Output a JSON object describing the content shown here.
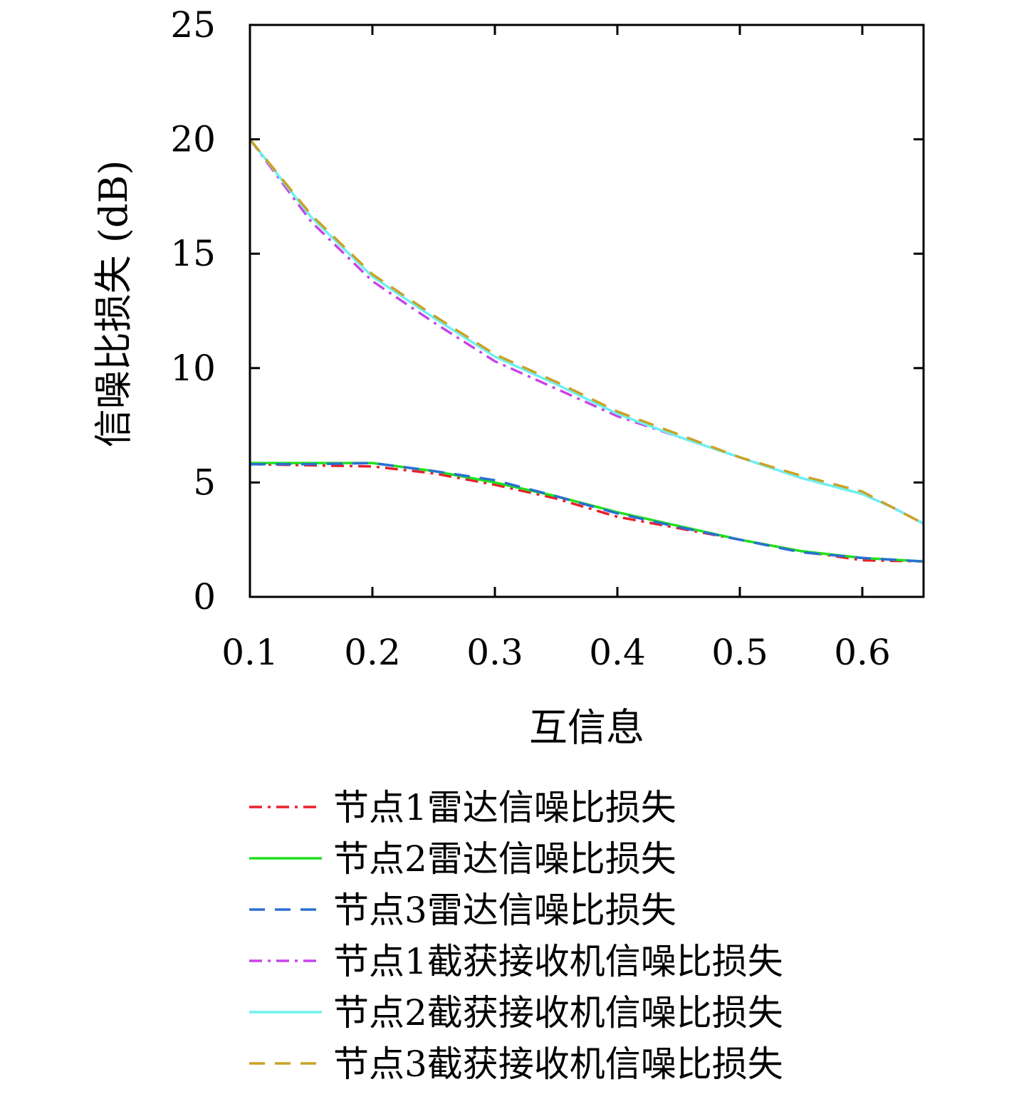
{
  "chart_data": {
    "type": "line",
    "xlabel": "互信息",
    "ylabel": "信噪比损失 (dB)",
    "xlim": [
      0.1,
      0.65
    ],
    "ylim": [
      0,
      25
    ],
    "x_ticks": [
      "0.1",
      "0.2",
      "0.3",
      "0.4",
      "0.5",
      "0.6"
    ],
    "y_ticks": [
      "0",
      "5",
      "10",
      "15",
      "20",
      "25"
    ],
    "grid": false,
    "legend_position": "bottom",
    "series": [
      {
        "name": "节点1雷达信噪比损失",
        "color": "#e8202a",
        "dash": "dashdot",
        "x": [
          0.1,
          0.15,
          0.2,
          0.25,
          0.3,
          0.35,
          0.4,
          0.45,
          0.5,
          0.55,
          0.6,
          0.65
        ],
        "y": [
          5.8,
          5.75,
          5.7,
          5.4,
          4.9,
          4.3,
          3.5,
          3.0,
          2.5,
          2.0,
          1.6,
          1.55
        ]
      },
      {
        "name": "节点2雷达信噪比损失",
        "color": "#1ee01e",
        "dash": "solid",
        "x": [
          0.1,
          0.15,
          0.2,
          0.25,
          0.3,
          0.35,
          0.4,
          0.45,
          0.5,
          0.55,
          0.6,
          0.65
        ],
        "y": [
          5.85,
          5.85,
          5.85,
          5.5,
          5.0,
          4.4,
          3.7,
          3.1,
          2.5,
          2.0,
          1.7,
          1.55
        ]
      },
      {
        "name": "节点3雷达信噪比损失",
        "color": "#2a6fd2",
        "dash": "dashed",
        "x": [
          0.1,
          0.15,
          0.2,
          0.25,
          0.3,
          0.35,
          0.4,
          0.45,
          0.5,
          0.55,
          0.6,
          0.65
        ],
        "y": [
          5.8,
          5.8,
          5.85,
          5.5,
          5.1,
          4.4,
          3.65,
          3.05,
          2.5,
          1.95,
          1.7,
          1.55
        ]
      },
      {
        "name": "节点1截获接收机信噪比损失",
        "color": "#c845e8",
        "dash": "dashdot",
        "x": [
          0.1,
          0.15,
          0.2,
          0.25,
          0.3,
          0.35,
          0.4,
          0.45,
          0.5,
          0.55,
          0.6,
          0.625,
          0.65
        ],
        "y": [
          20.0,
          16.4,
          13.8,
          12.0,
          10.3,
          9.1,
          7.9,
          7.0,
          6.1,
          5.2,
          4.5,
          3.9,
          3.2
        ]
      },
      {
        "name": "节点2截获接收机信噪比损失",
        "color": "#6ef0f0",
        "dash": "solid",
        "x": [
          0.1,
          0.15,
          0.2,
          0.25,
          0.3,
          0.35,
          0.4,
          0.45,
          0.5,
          0.55,
          0.6,
          0.625,
          0.65
        ],
        "y": [
          20.0,
          16.6,
          14.0,
          12.2,
          10.5,
          9.3,
          8.0,
          7.0,
          6.1,
          5.2,
          4.5,
          3.9,
          3.2
        ]
      },
      {
        "name": "节点3截获接收机信噪比损失",
        "color": "#c9a227",
        "dash": "dashed",
        "x": [
          0.1,
          0.15,
          0.2,
          0.25,
          0.3,
          0.35,
          0.4,
          0.45,
          0.5,
          0.55,
          0.6,
          0.625,
          0.65
        ],
        "y": [
          20.0,
          16.7,
          14.1,
          12.3,
          10.6,
          9.4,
          8.1,
          7.1,
          6.1,
          5.3,
          4.6,
          3.9,
          3.2
        ]
      }
    ]
  }
}
